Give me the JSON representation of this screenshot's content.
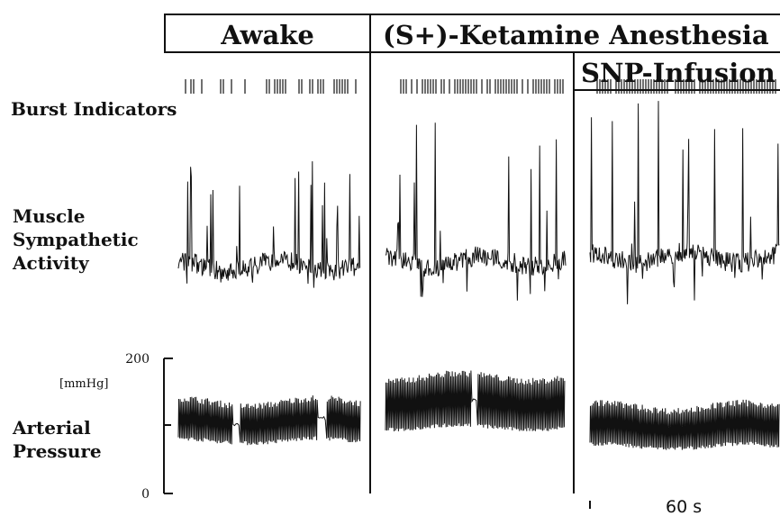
{
  "chart_data": {
    "type": "line",
    "title": "",
    "conditions": [
      {
        "key": "awake",
        "label": "Awake"
      },
      {
        "key": "ketamine",
        "label": "(S+)-Ketamine Anesthesia"
      },
      {
        "key": "snp",
        "label": "SNP-Infusion"
      }
    ],
    "row_labels": {
      "burst": "Burst Indicators",
      "msa": [
        "Muscle",
        "Sympathetic",
        "Activity"
      ],
      "ap": [
        "Arterial",
        "Pressure"
      ]
    },
    "pressure_axis": {
      "unit": "[mmHg]",
      "ylim": [
        0,
        200
      ],
      "ticks": [
        {
          "value": 0,
          "label": "0"
        },
        {
          "value": 100,
          "label": ""
        },
        {
          "value": 200,
          "label": "200"
        }
      ]
    },
    "time_scale": "60 s",
    "series": {
      "awake": {
        "burst_density": 0.45,
        "msa_baseline": 0.12,
        "msa_peak": 0.55,
        "ap_systolic": 135,
        "ap_diastolic": 78
      },
      "ketamine": {
        "burst_density": 0.75,
        "msa_baseline": 0.25,
        "msa_peak": 0.8,
        "ap_systolic": 172,
        "ap_diastolic": 98
      },
      "snp": {
        "burst_density": 0.95,
        "msa_baseline": 0.35,
        "msa_peak": 1.0,
        "ap_systolic": 128,
        "ap_diastolic": 70
      }
    }
  }
}
